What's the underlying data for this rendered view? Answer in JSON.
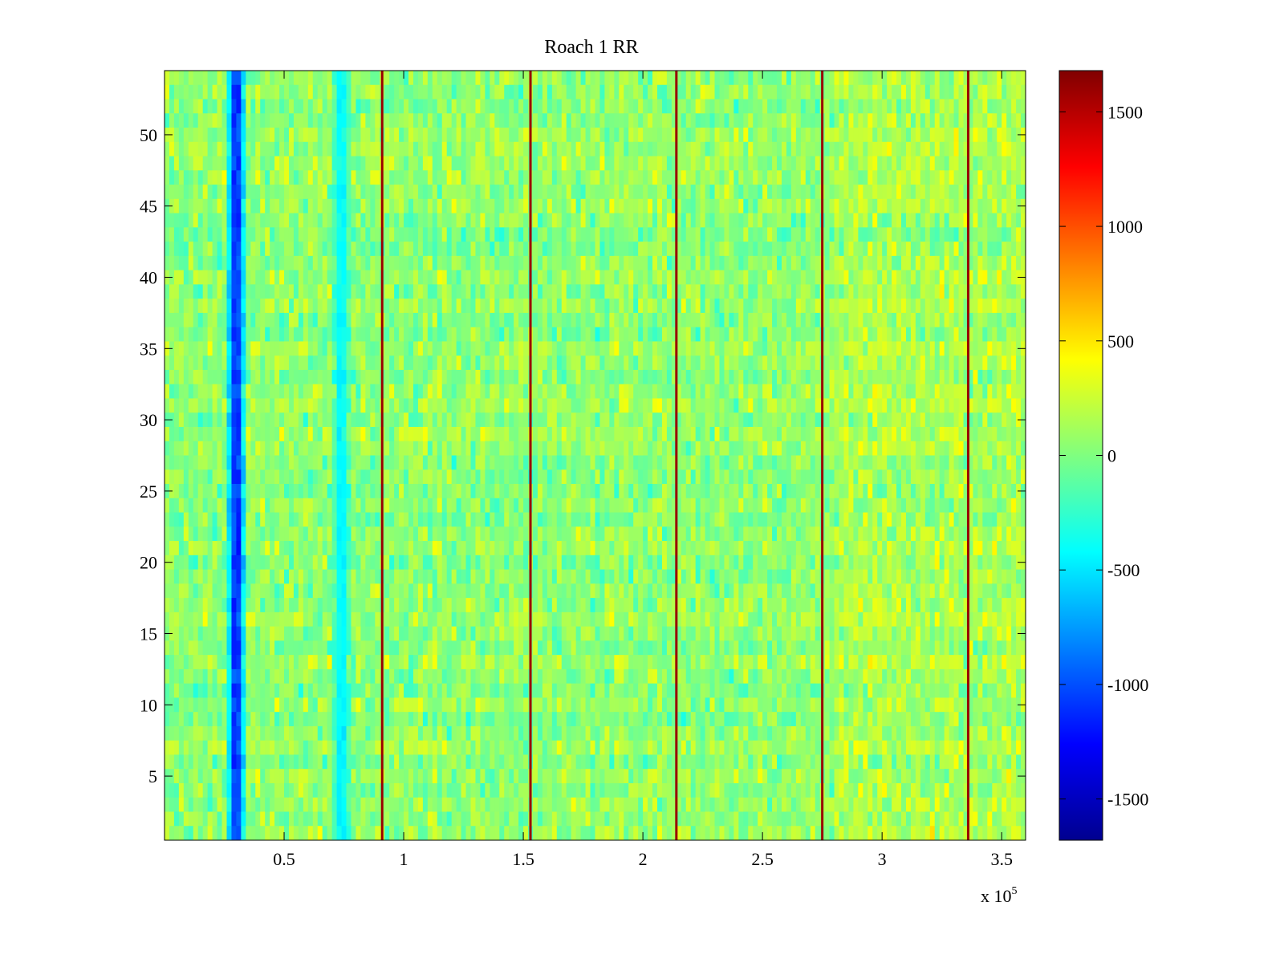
{
  "chart_data": {
    "type": "heatmap",
    "title": "Roach 1 RR",
    "xlabel": "",
    "ylabel": "",
    "x_multiplier_label": "x 10",
    "x_multiplier_exponent": "5",
    "xlim": [
      0,
      3.6
    ],
    "ylim": [
      0.5,
      54.5
    ],
    "x_ticks": [
      {
        "value": 0.5,
        "label": "0.5"
      },
      {
        "value": 1,
        "label": "1"
      },
      {
        "value": 1.5,
        "label": "1.5"
      },
      {
        "value": 2,
        "label": "2"
      },
      {
        "value": 2.5,
        "label": "2.5"
      },
      {
        "value": 3,
        "label": "3"
      },
      {
        "value": 3.5,
        "label": "3.5"
      }
    ],
    "y_ticks": [
      {
        "value": 5,
        "label": "5"
      },
      {
        "value": 10,
        "label": "10"
      },
      {
        "value": 15,
        "label": "15"
      },
      {
        "value": 20,
        "label": "20"
      },
      {
        "value": 25,
        "label": "25"
      },
      {
        "value": 30,
        "label": "30"
      },
      {
        "value": 35,
        "label": "35"
      },
      {
        "value": 40,
        "label": "40"
      },
      {
        "value": 45,
        "label": "45"
      },
      {
        "value": 50,
        "label": "50"
      }
    ],
    "rows": 54,
    "colormap": "jet",
    "clim": [
      -1680,
      1680
    ],
    "colorbar_ticks": [
      {
        "value": 1500,
        "label": "1500"
      },
      {
        "value": 1000,
        "label": "1000"
      },
      {
        "value": 500,
        "label": "500"
      },
      {
        "value": 0,
        "label": "0"
      },
      {
        "value": -500,
        "label": "-500"
      },
      {
        "value": -1000,
        "label": "-1000"
      },
      {
        "value": -1500,
        "label": "-1500"
      }
    ],
    "background_level": 50,
    "features": [
      {
        "kind": "low-band",
        "x_center": 0.3,
        "width": 0.03,
        "level": -1500
      },
      {
        "kind": "low-band",
        "x_center": 0.74,
        "width": 0.03,
        "level": -600
      },
      {
        "kind": "high-line",
        "x": 0.91,
        "level": 1600
      },
      {
        "kind": "high-line",
        "x": 1.53,
        "level": 1600
      },
      {
        "kind": "high-line",
        "x": 2.14,
        "level": 1600
      },
      {
        "kind": "high-line",
        "x": 2.75,
        "level": 1600
      },
      {
        "kind": "high-line",
        "x": 3.36,
        "level": 1600
      }
    ],
    "grid": false
  }
}
